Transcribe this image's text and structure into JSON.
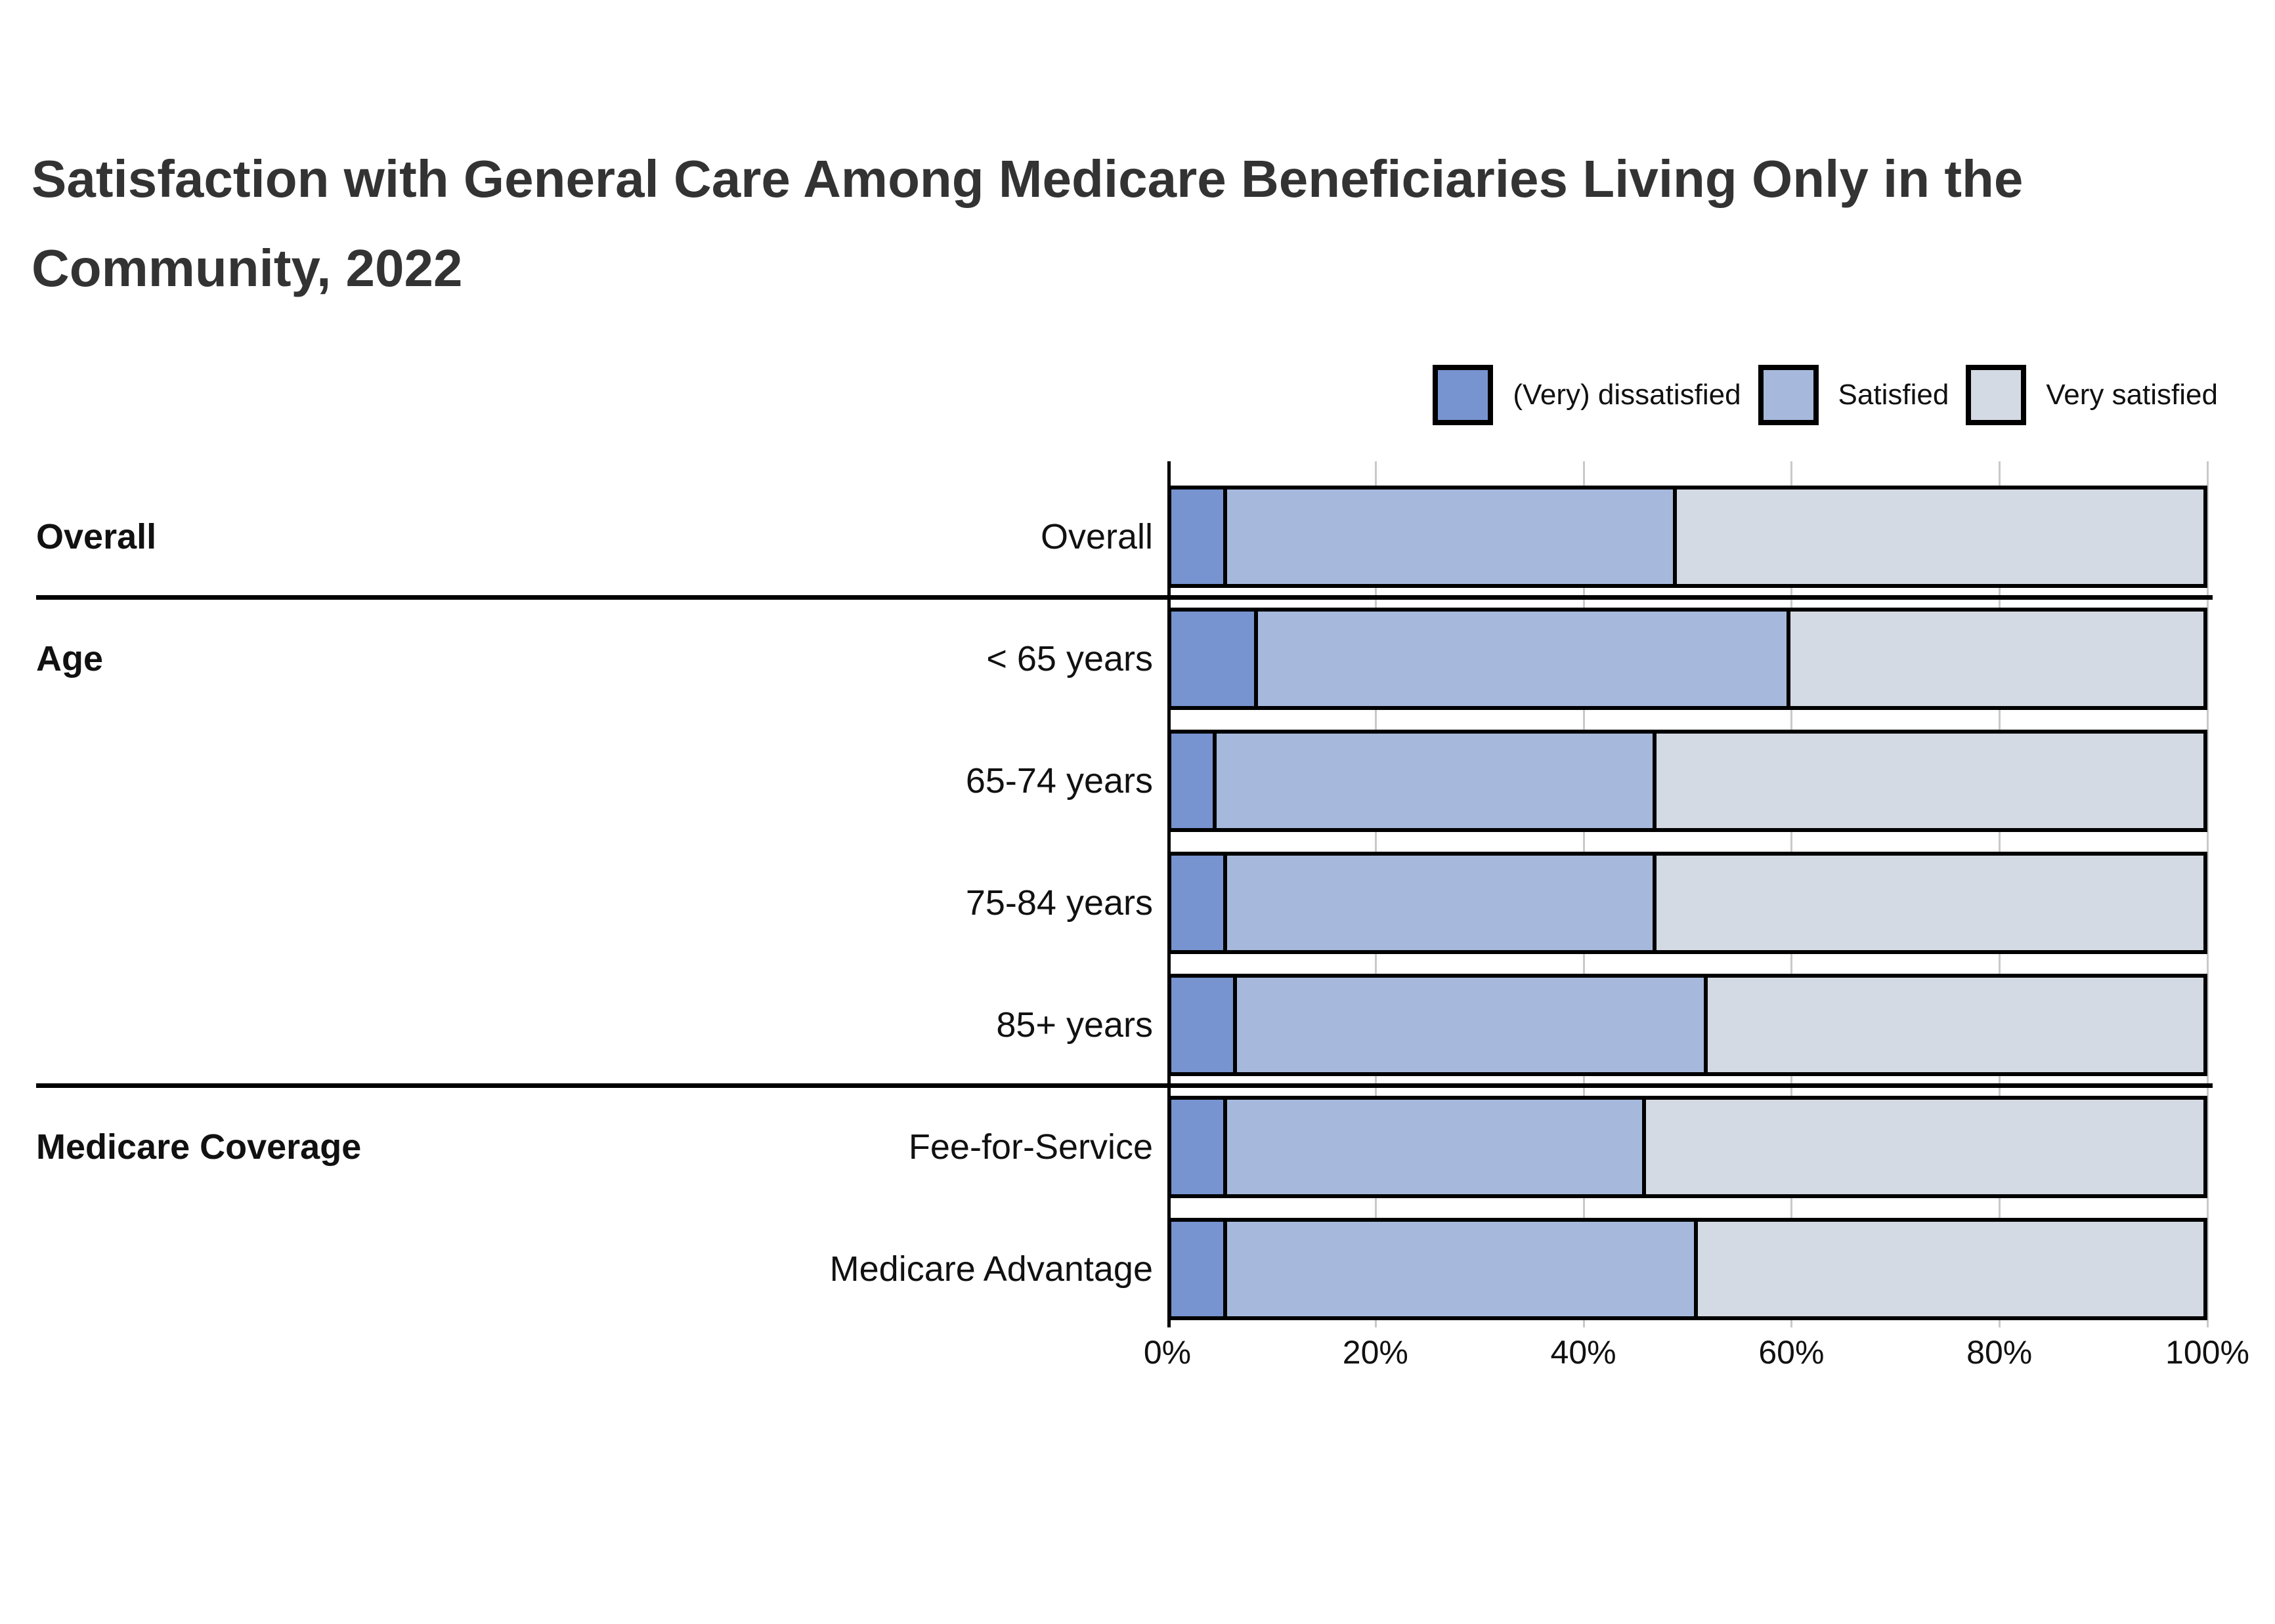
{
  "title": "Satisfaction with General Care Among Medicare Beneficiaries Living Only in the Community, 2022",
  "legend": [
    {
      "label": "(Very) dissatisfied",
      "color": "#7794d0"
    },
    {
      "label": "Satisfied",
      "color": "#a6b9dc"
    },
    {
      "label": "Very satisfied",
      "color": "#d4dae3"
    }
  ],
  "colors": {
    "bar_border": "#000000",
    "axis_line": "#000000",
    "gridline": "#c9c9c9",
    "group_divider": "#000000",
    "title_text": "#333333",
    "label_text": "#111111"
  },
  "chart_data": {
    "type": "bar",
    "orientation": "horizontal",
    "stacked": true,
    "units": "percent",
    "title": "Satisfaction with General Care Among Medicare Beneficiaries Living Only in the Community, 2022",
    "xlabel": "",
    "ylabel": "",
    "xlim": [
      0,
      100
    ],
    "xticks": [
      "0%",
      "20%",
      "40%",
      "60%",
      "80%",
      "100%"
    ],
    "gridlines": true,
    "legend_position": "top-right",
    "series_names": [
      "(Very) dissatisfied",
      "Satisfied",
      "Very satisfied"
    ],
    "groups": [
      {
        "group": "Overall",
        "rows": [
          {
            "label": "Overall",
            "values": [
              5,
              44,
              51
            ]
          }
        ]
      },
      {
        "group": "Age",
        "rows": [
          {
            "label": "< 65 years",
            "values": [
              8,
              52,
              40
            ]
          },
          {
            "label": "65-74 years",
            "values": [
              4,
              43,
              53
            ]
          },
          {
            "label": "75-84 years",
            "values": [
              5,
              42,
              53
            ]
          },
          {
            "label": "85+ years",
            "values": [
              6,
              46,
              48
            ]
          }
        ]
      },
      {
        "group": "Medicare Coverage",
        "rows": [
          {
            "label": "Fee-for-Service",
            "values": [
              5,
              41,
              54
            ]
          },
          {
            "label": "Medicare Advantage",
            "values": [
              5,
              46,
              49
            ]
          }
        ]
      }
    ]
  }
}
